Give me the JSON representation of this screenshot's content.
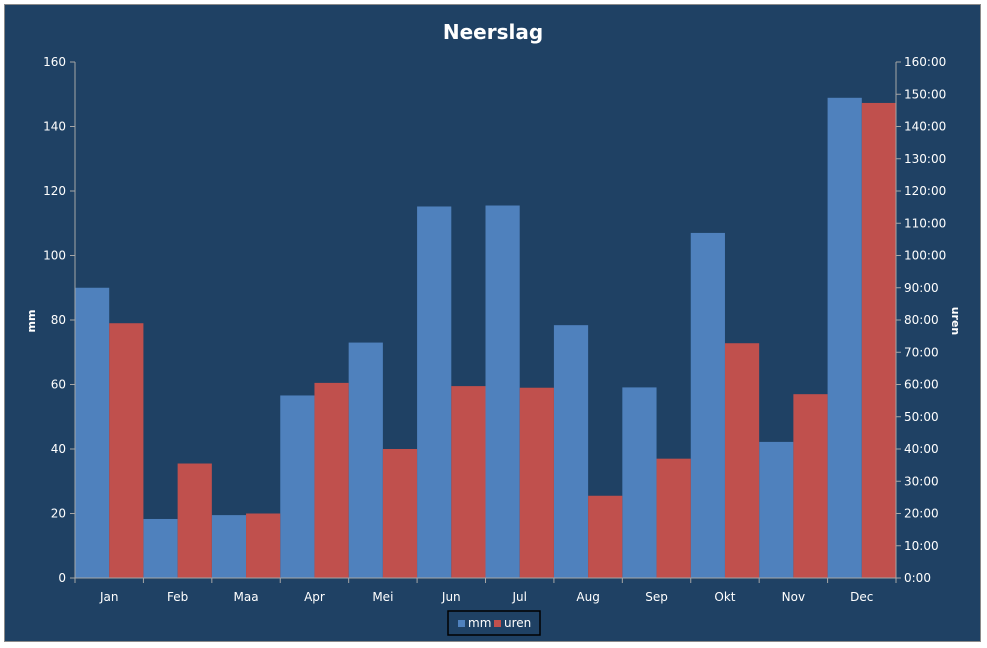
{
  "chart_data": {
    "type": "bar",
    "title": "Neerslag",
    "categories": [
      "Jan",
      "Feb",
      "Maa",
      "Apr",
      "Mei",
      "Jun",
      "Jul",
      "Aug",
      "Sep",
      "Okt",
      "Nov",
      "Dec"
    ],
    "series": [
      {
        "name": "mm",
        "axis": "left",
        "color": "#4f81bd",
        "values": [
          90.0,
          18.3,
          19.5,
          56.6,
          73.0,
          115.2,
          115.5,
          78.4,
          59.1,
          107.0,
          42.2,
          148.9
        ]
      },
      {
        "name": "uren",
        "axis": "right",
        "color": "#c0504d",
        "values": [
          79.0,
          35.5,
          20.0,
          60.5,
          40.0,
          59.5,
          59.0,
          25.5,
          37.0,
          72.8,
          57.0,
          147.3
        ]
      }
    ],
    "ylabel": "mm",
    "ylim": [
      0,
      160
    ],
    "yticks": [
      "0",
      "20",
      "40",
      "60",
      "80",
      "100",
      "120",
      "140",
      "160"
    ],
    "y2label": "uren",
    "y2lim": [
      0,
      160
    ],
    "y2ticks": [
      "0:00",
      "10:00",
      "20:00",
      "30:00",
      "40:00",
      "50:00",
      "60:00",
      "70:00",
      "80:00",
      "90:00",
      "100:00",
      "110:00",
      "120:00",
      "130:00",
      "140:00",
      "150:00",
      "160:00"
    ],
    "grid": false,
    "legend": "bottom",
    "background": "#1f4164",
    "axis_color": "#a6a6a6",
    "text_color": "#ffffff"
  }
}
